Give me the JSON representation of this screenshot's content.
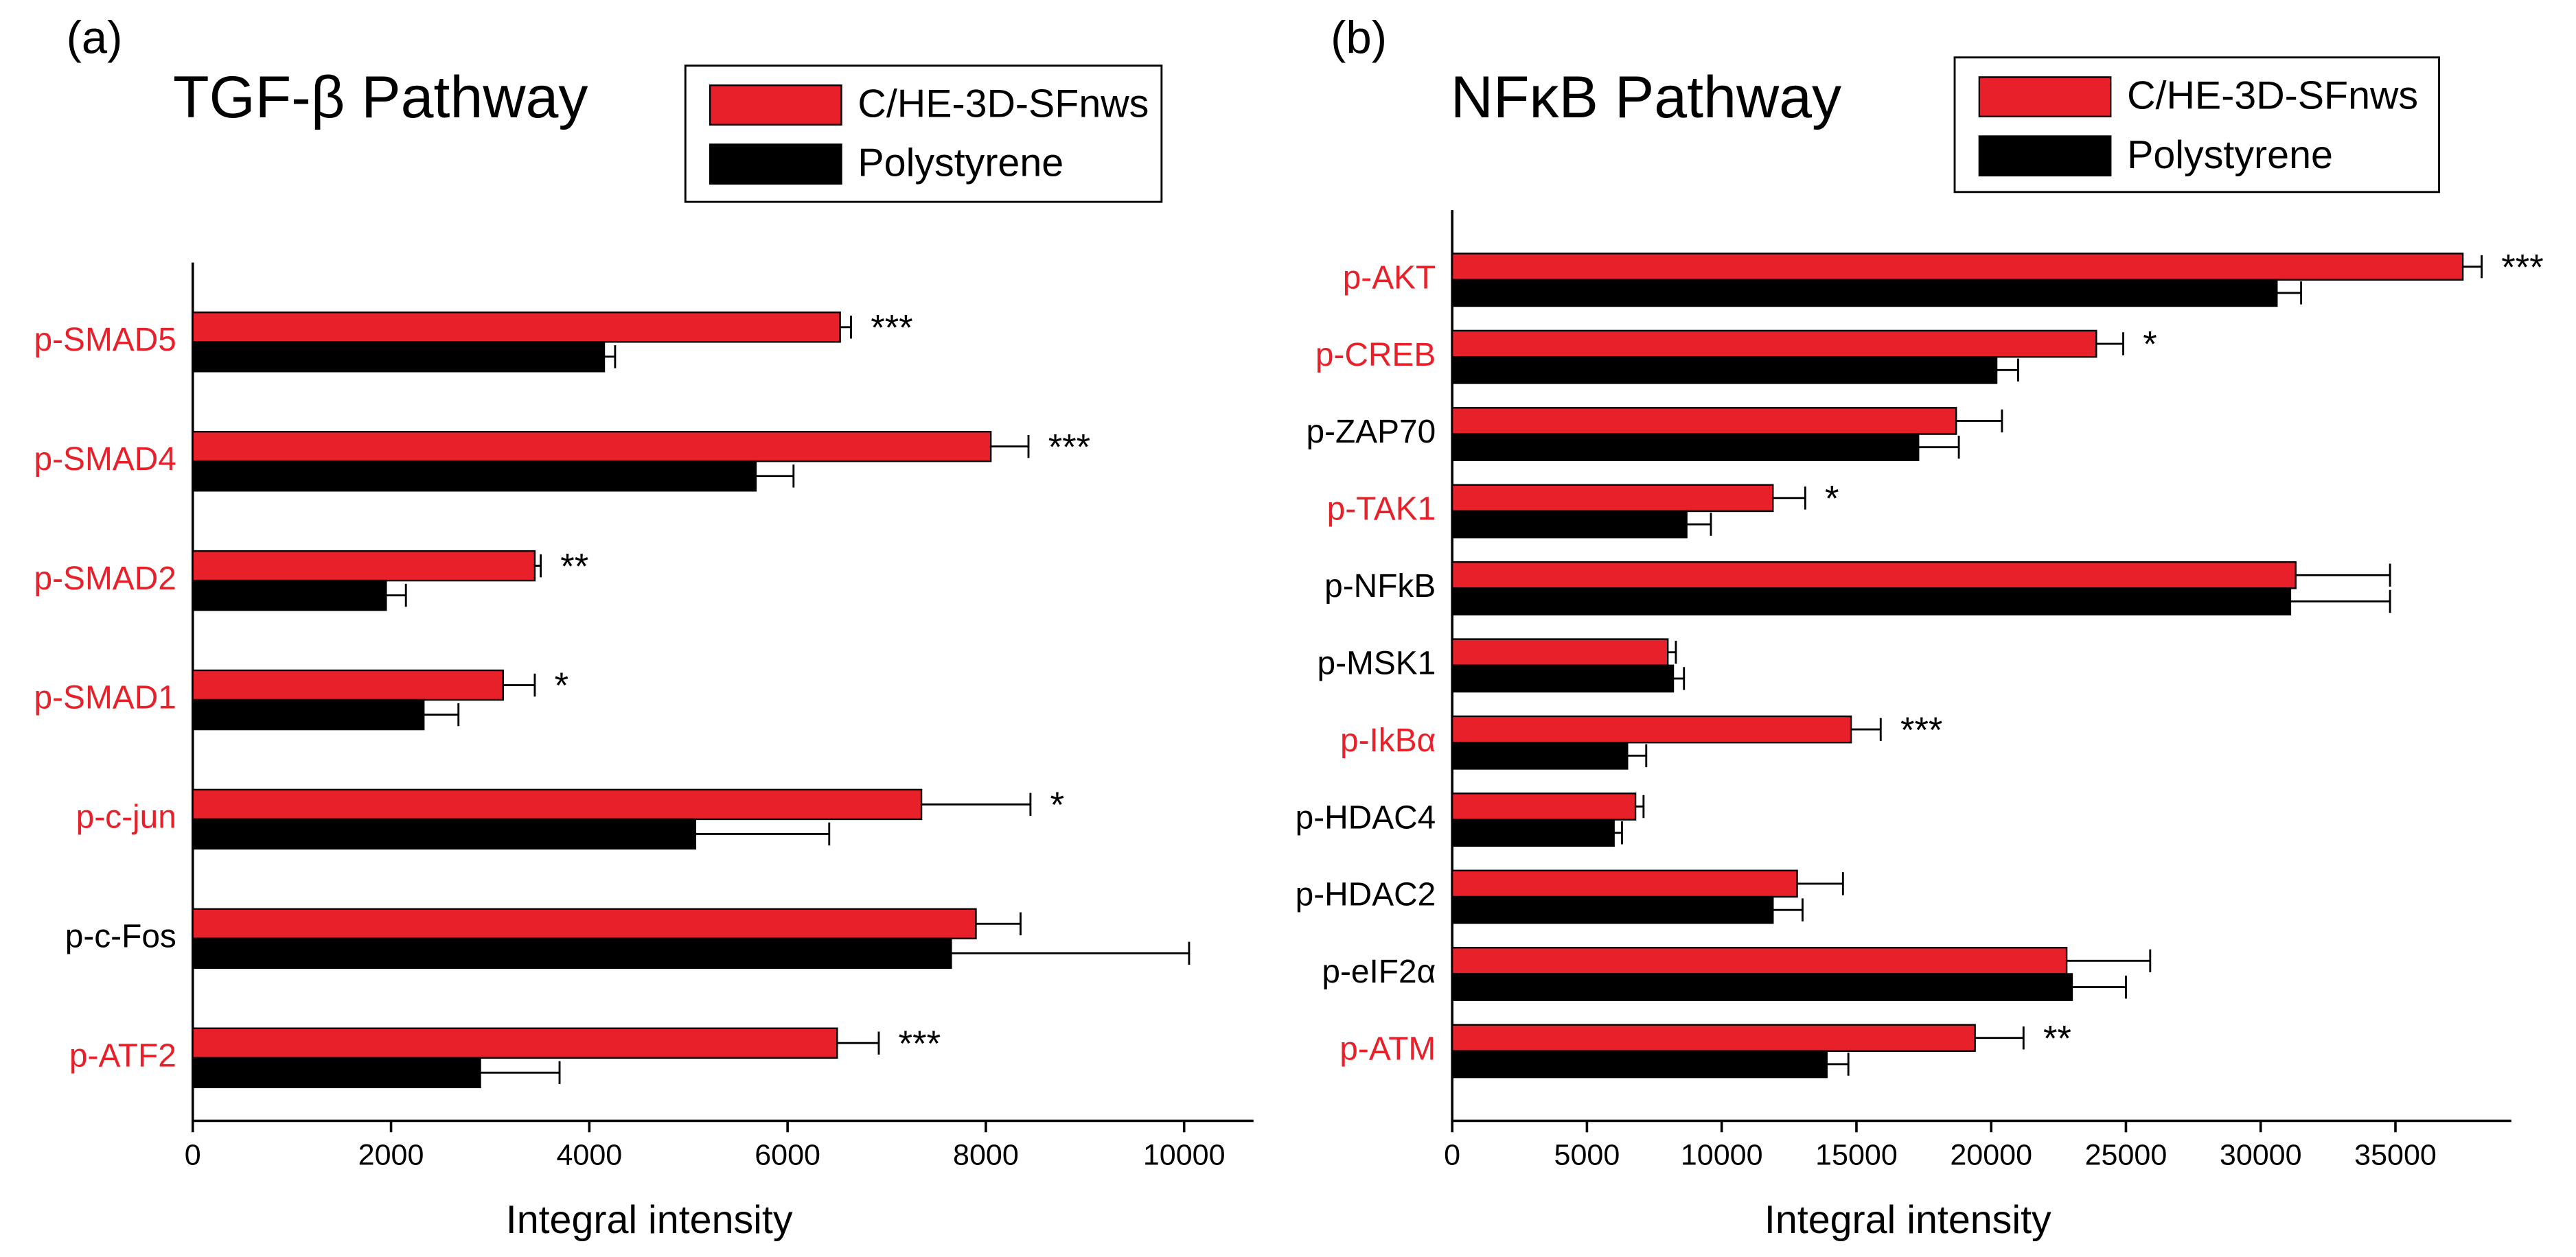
{
  "chart_data": [
    {
      "type": "bar",
      "orientation": "horizontal",
      "panel_label": "(a)",
      "title": "TGF-β Pathway",
      "categories": [
        "p-SMAD5",
        "p-SMAD4",
        "p-SMAD2",
        "p-SMAD1",
        "p-c-jun",
        "p-c-Fos",
        "p-ATF2"
      ],
      "category_colors": [
        "#e8202a",
        "#e8202a",
        "#e8202a",
        "#e8202a",
        "#e8202a",
        "#000000",
        "#e8202a"
      ],
      "series": [
        {
          "name": "C/HE-3D-SFnws",
          "color": "#e8202a",
          "values": [
            6530,
            8050,
            3450,
            3130,
            7350,
            7900,
            6500
          ],
          "errors": [
            110,
            380,
            60,
            320,
            1100,
            450,
            420
          ]
        },
        {
          "name": "Polystyrene",
          "color": "#000000",
          "values": [
            4150,
            5680,
            1950,
            2330,
            5070,
            7650,
            2900
          ],
          "errors": [
            110,
            380,
            200,
            350,
            1350,
            2400,
            800
          ]
        }
      ],
      "annotations": [
        "***",
        "***",
        "**",
        "*",
        "*",
        null,
        "***"
      ],
      "xlabel": "Integral intensity",
      "xlim": [
        0,
        10700
      ],
      "xticks": [
        0,
        2000,
        4000,
        6000,
        8000,
        10000
      ]
    },
    {
      "type": "bar",
      "orientation": "horizontal",
      "panel_label": "(b)",
      "title": "NFκB Pathway",
      "categories": [
        "p-AKT",
        "p-CREB",
        "p-ZAP70",
        "p-TAK1",
        "p-NFkB",
        "p-MSK1",
        "p-IkBα",
        "p-HDAC4",
        "p-HDAC2",
        "p-eIF2α",
        "p-ATM"
      ],
      "category_colors": [
        "#e8202a",
        "#e8202a",
        "#000000",
        "#e8202a",
        "#000000",
        "#000000",
        "#e8202a",
        "#000000",
        "#000000",
        "#000000",
        "#e8202a"
      ],
      "series": [
        {
          "name": "C/HE-3D-SFnws",
          "color": "#e8202a",
          "values": [
            37500,
            23900,
            18700,
            11900,
            31300,
            8000,
            14800,
            6800,
            12800,
            22800,
            19400
          ],
          "errors": [
            700,
            1000,
            1700,
            1200,
            3500,
            300,
            1100,
            300,
            1700,
            3100,
            1800
          ]
        },
        {
          "name": "Polystyrene",
          "color": "#000000",
          "values": [
            30600,
            20200,
            17300,
            8700,
            31100,
            8200,
            6500,
            6000,
            11900,
            23000,
            13900
          ],
          "errors": [
            900,
            800,
            1500,
            900,
            3700,
            400,
            700,
            300,
            1100,
            2000,
            800
          ]
        }
      ],
      "annotations": [
        "***",
        "*",
        null,
        "*",
        null,
        null,
        "***",
        null,
        null,
        null,
        "**"
      ],
      "xlabel": "Integral intensity",
      "xlim": [
        0,
        39300
      ],
      "xticks": [
        0,
        5000,
        10000,
        15000,
        20000,
        25000,
        30000,
        35000
      ]
    }
  ]
}
